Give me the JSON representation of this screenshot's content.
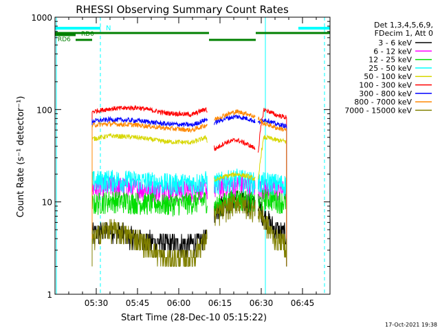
{
  "chart_data": {
    "type": "line",
    "title": "RHESSI Observing Summary Count Rates",
    "xlabel": "Start Time (28-Dec-10 05:15:22)",
    "ylabel": "Count Rate (s⁻¹ detector⁻¹)",
    "yscale": "log",
    "ylim": [
      1,
      1000
    ],
    "xlim_minutes": [
      0,
      100
    ],
    "x_ticks": [
      {
        "minute": 15,
        "label": "05:30"
      },
      {
        "minute": 30,
        "label": "05:45"
      },
      {
        "minute": 45,
        "label": "06:00"
      },
      {
        "minute": 60,
        "label": "06:15"
      },
      {
        "minute": 75,
        "label": "06:30"
      },
      {
        "minute": 90,
        "label": "06:45"
      }
    ],
    "y_ticks": [
      {
        "value": 1,
        "label": "1"
      },
      {
        "value": 10,
        "label": "10"
      },
      {
        "value": 100,
        "label": "100"
      },
      {
        "value": 1000,
        "label": "1000"
      }
    ],
    "legend_header": [
      "Det 1,3,4,5,6,9,",
      "FDecim 1, Att 0"
    ],
    "legend_placement": "right",
    "footer_timestamp": "17-Oct-2021 19:38",
    "data_gaps_minutes": [
      [
        55.4,
        57.8
      ],
      [
        72.8,
        73.8
      ]
    ],
    "series": [
      {
        "name": "3 - 6 keV",
        "color": "#000000",
        "x": [
          13.5,
          20,
          30,
          40,
          50,
          55,
          58,
          62,
          66,
          70,
          74,
          76,
          78,
          80,
          84.2
        ],
        "y": [
          4.5,
          5,
          4,
          3.5,
          3.5,
          4,
          8,
          10,
          11,
          10,
          9,
          7,
          6,
          5,
          4.5
        ]
      },
      {
        "name": "6 - 12 keV",
        "color": "#ff00ff",
        "x": [
          13.5,
          20,
          30,
          40,
          50,
          55,
          58,
          62,
          66,
          70,
          74,
          76,
          78,
          80,
          84.2
        ],
        "y": [
          14,
          15,
          14,
          13.5,
          13.5,
          14,
          14,
          15,
          15.5,
          15,
          14,
          14,
          14,
          14,
          13
        ]
      },
      {
        "name": "12 - 25 keV",
        "color": "#00dd00",
        "x": [
          13.5,
          20,
          30,
          40,
          50,
          55,
          58,
          62,
          66,
          70,
          74,
          76,
          78,
          80,
          84.2
        ],
        "y": [
          9.5,
          10.5,
          10,
          9.5,
          10,
          10.5,
          9,
          10,
          11,
          10.5,
          9.5,
          11,
          11,
          10.5,
          10
        ]
      },
      {
        "name": "25 - 50 keV",
        "color": "#00ffff",
        "x": [
          13.5,
          20,
          30,
          40,
          50,
          55,
          58,
          62,
          66,
          70,
          74,
          76,
          78,
          80,
          84.2
        ],
        "y": [
          17,
          17.5,
          17,
          16,
          16,
          17,
          16,
          17,
          18,
          17,
          16,
          16.5,
          16.5,
          16,
          15.5
        ]
      },
      {
        "name": "50 - 100 keV",
        "color": "#d7d700",
        "x": [
          13.5,
          20,
          30,
          40,
          50,
          55,
          58,
          62,
          66,
          70,
          74,
          76,
          78,
          80,
          84.2
        ],
        "y": [
          48,
          52,
          50,
          45,
          44,
          50,
          17,
          19,
          20,
          19,
          17,
          50,
          49,
          47,
          45
        ]
      },
      {
        "name": "100 - 300 keV",
        "color": "#ff0000",
        "x": [
          13.5,
          20,
          30,
          40,
          50,
          55,
          58,
          62,
          66,
          70,
          74,
          76,
          78,
          80,
          84.2
        ],
        "y": [
          95,
          102,
          105,
          92,
          88,
          102,
          37,
          44,
          47,
          42,
          36,
          100,
          95,
          88,
          82
        ]
      },
      {
        "name": "300 - 800 keV",
        "color": "#0000ff",
        "x": [
          13.5,
          20,
          30,
          40,
          50,
          55,
          58,
          62,
          66,
          70,
          74,
          76,
          78,
          80,
          84.2
        ],
        "y": [
          75,
          78,
          76,
          70,
          68,
          78,
          72,
          80,
          84,
          80,
          72,
          78,
          75,
          70,
          66
        ]
      },
      {
        "name": "800 - 7000 keV",
        "color": "#ff8800",
        "x": [
          13.5,
          20,
          30,
          40,
          50,
          55,
          58,
          62,
          66,
          70,
          74,
          76,
          78,
          80,
          84.2
        ],
        "y": [
          68,
          70,
          68,
          63,
          60,
          68,
          78,
          88,
          95,
          90,
          80,
          70,
          68,
          64,
          60
        ]
      },
      {
        "name": "7000 - 15000 keV",
        "color": "#808000",
        "x": [
          13.5,
          20,
          30,
          40,
          50,
          55,
          58,
          62,
          66,
          70,
          74,
          76,
          78,
          80,
          84.2
        ],
        "y": [
          4,
          5.2,
          4,
          2.4,
          2.5,
          4,
          7,
          8.5,
          10,
          9,
          8,
          6.5,
          5,
          4,
          3.5
        ]
      }
    ],
    "saa_flag": {
      "label": "N",
      "color": "#00ffff",
      "segments": [
        [
          0,
          16.5
        ],
        [
          88.5,
          100
        ]
      ]
    },
    "night_flag": {
      "color": "#008000",
      "segments": [
        [
          0,
          56
        ],
        [
          56,
          73
        ],
        [
          73,
          100
        ]
      ]
    },
    "rd_labels": [
      "RD0",
      "RD6"
    ],
    "vertical_lines": [
      {
        "minute": 0.5,
        "style": "solid",
        "color": "#00ffff"
      },
      {
        "minute": 16.5,
        "style": "dashed",
        "color": "#00ffff"
      },
      {
        "minute": 76.5,
        "style": "solid",
        "color": "#00ffff"
      },
      {
        "minute": 98,
        "style": "dashed",
        "color": "#00ffff"
      }
    ]
  }
}
